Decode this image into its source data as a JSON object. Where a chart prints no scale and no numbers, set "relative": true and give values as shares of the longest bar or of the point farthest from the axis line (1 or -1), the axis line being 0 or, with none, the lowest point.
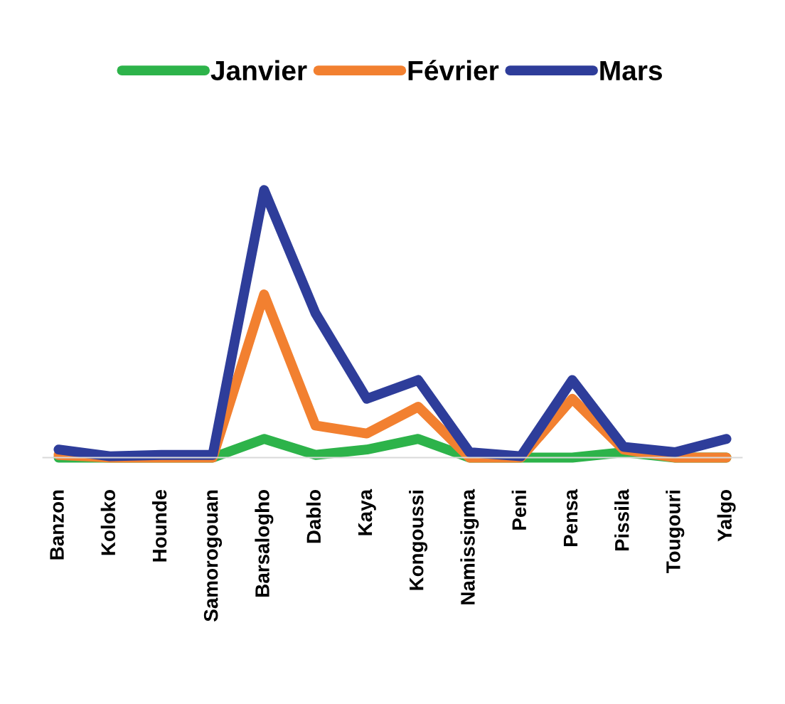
{
  "chart_data": {
    "type": "line",
    "relative": true,
    "legend": "top",
    "grid": false,
    "marker": "none",
    "line_style": "solid",
    "categories": [
      "Banzon",
      "Koloko",
      "Hounde",
      "Samorogouan",
      "Barsalogho",
      "Dablo",
      "Kaya",
      "Kongoussi",
      "Namissigma",
      "Peni",
      "Pensa",
      "Pissila",
      "Tougouri",
      "Yalgo"
    ],
    "series": [
      {
        "name": "Janvier",
        "color": "#2db34a",
        "values": [
          0,
          0,
          0,
          0,
          0.07,
          0.01,
          0.03,
          0.07,
          0,
          0,
          0,
          0.02,
          0,
          0
        ]
      },
      {
        "name": "Février",
        "color": "#f28030",
        "values": [
          0.01,
          0,
          0,
          0,
          0.61,
          0.12,
          0.09,
          0.19,
          0,
          0,
          0.22,
          0.03,
          0,
          0
        ]
      },
      {
        "name": "Mars",
        "color": "#2e3d9a",
        "values": [
          0.03,
          0.005,
          0.01,
          0.01,
          1,
          0.54,
          0.22,
          0.29,
          0.02,
          0.005,
          0.29,
          0.04,
          0.02,
          0.07
        ]
      }
    ]
  }
}
